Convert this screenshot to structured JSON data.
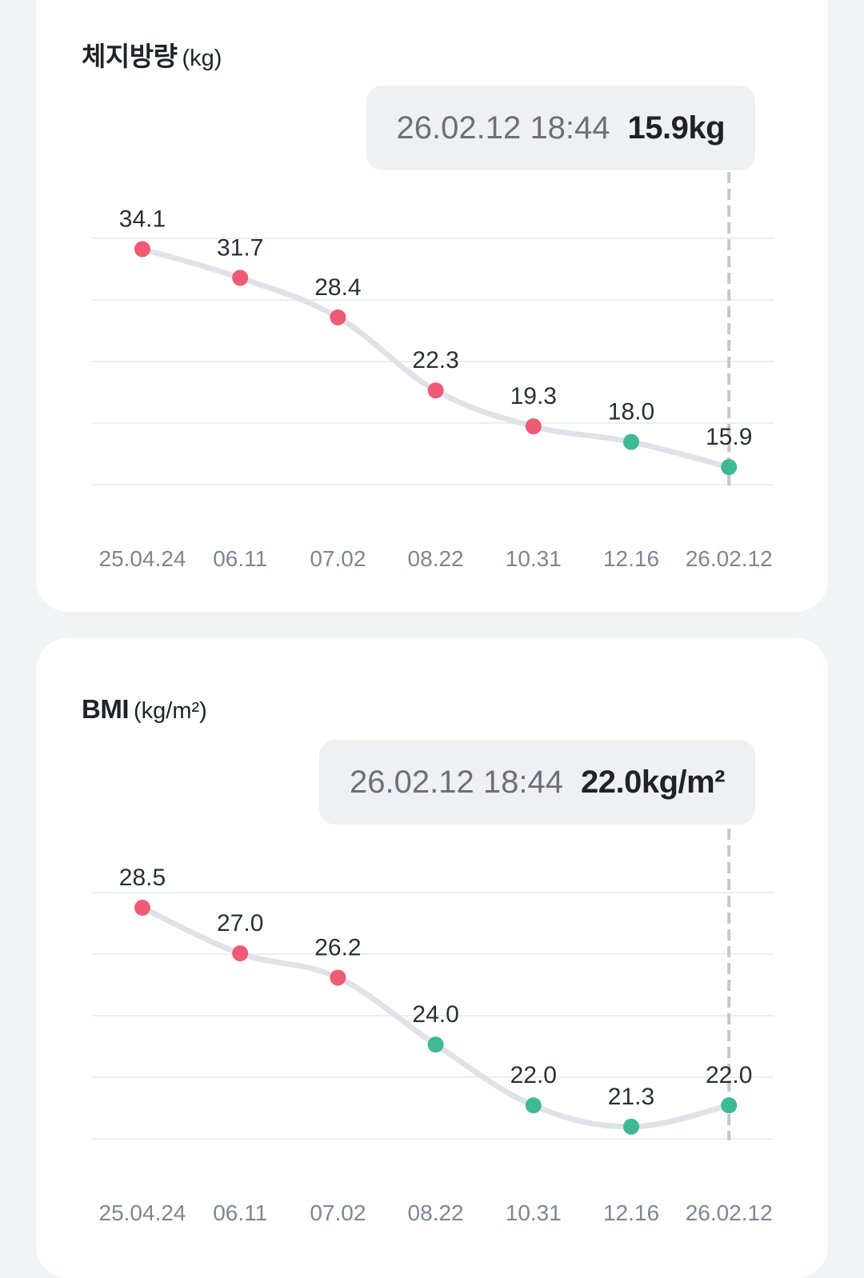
{
  "colors": {
    "background": "#f2f3f5",
    "card": "#ffffff",
    "tooltip_bg": "#eef0f3",
    "line": "#dfe2e7",
    "grid": "#eceef1",
    "marker_line": "#c3c7cd",
    "point_red": "#ef5a74",
    "point_green": "#3dba92"
  },
  "charts": [
    {
      "title": "체지방량",
      "unit": "(kg)",
      "tooltip": {
        "timestamp": "26.02.12 18:44",
        "value": "15.9kg"
      }
    },
    {
      "title": "BMI",
      "unit": "(kg/m²)",
      "tooltip": {
        "timestamp": "26.02.12 18:44",
        "value": "22.0kg/m²"
      }
    }
  ],
  "chart_data": [
    {
      "type": "line",
      "title": "체지방량",
      "ylabel": "(kg)",
      "categories": [
        "25.04.24",
        "06.11",
        "07.02",
        "08.22",
        "10.31",
        "12.16",
        "26.02.12"
      ],
      "values": [
        34.1,
        31.7,
        28.4,
        22.3,
        19.3,
        18.0,
        15.9
      ],
      "value_labels": [
        "34.1",
        "31.7",
        "28.4",
        "22.3",
        "19.3",
        "18.0",
        "15.9"
      ],
      "point_status": [
        "red",
        "red",
        "red",
        "red",
        "red",
        "green",
        "green"
      ],
      "ylim": [
        14.5,
        35.0
      ],
      "grid": true,
      "highlight_index": 6
    },
    {
      "type": "line",
      "title": "BMI",
      "ylabel": "(kg/m²)",
      "categories": [
        "25.04.24",
        "06.11",
        "07.02",
        "08.22",
        "10.31",
        "12.16",
        "26.02.12"
      ],
      "values": [
        28.5,
        27.0,
        26.2,
        24.0,
        22.0,
        21.3,
        22.0
      ],
      "value_labels": [
        "28.5",
        "27.0",
        "26.2",
        "24.0",
        "22.0",
        "21.3",
        "22.0"
      ],
      "point_status": [
        "red",
        "red",
        "red",
        "green",
        "green",
        "green",
        "green"
      ],
      "ylim": [
        20.9,
        29.0
      ],
      "grid": true,
      "highlight_index": 6
    }
  ]
}
